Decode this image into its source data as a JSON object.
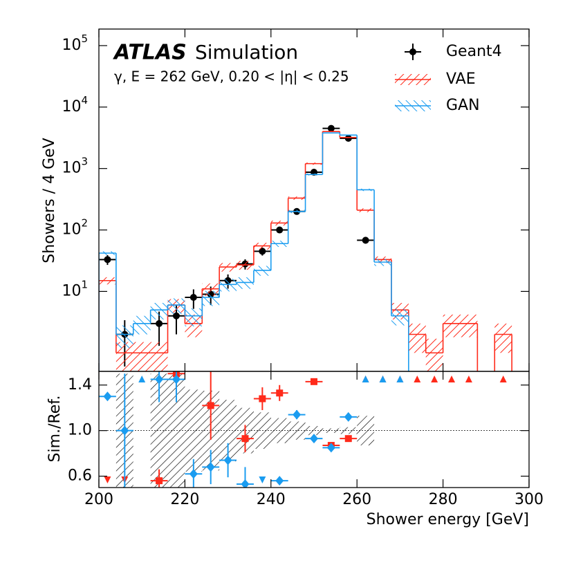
{
  "chart_data": [
    {
      "type": "histogram",
      "title": "ATLAS",
      "subtitle": "Simulation",
      "annotation": "γ, E = 262 GeV, 0.20 < |η| < 0.25",
      "ylabel": "Showers / 4 GeV",
      "log_y": true,
      "legend": "upper right",
      "xlim": [
        200,
        300
      ],
      "ylim": [
        0.5,
        186000
      ],
      "yticks": [
        {
          "value": 10,
          "label": "10",
          "power": "1"
        },
        {
          "value": 100,
          "label": "10",
          "power": "2"
        },
        {
          "value": 1000,
          "label": "10",
          "power": "3"
        },
        {
          "value": 10000,
          "label": "10",
          "power": "4"
        },
        {
          "value": 100000,
          "label": "10",
          "power": "5"
        }
      ],
      "bins": [
        200,
        204,
        208,
        212,
        216,
        220,
        224,
        228,
        232,
        236,
        240,
        244,
        248,
        252,
        256,
        260,
        264,
        268,
        272,
        276,
        280,
        284,
        288,
        292,
        296,
        300
      ],
      "series": [
        {
          "name": "Geant4",
          "style": "points",
          "color": "#000000",
          "values": [
            33,
            2,
            null,
            3,
            4,
            8,
            9,
            15,
            28,
            45,
            100,
            200,
            870,
            4500,
            3100,
            68,
            null,
            null,
            null,
            null,
            null,
            null,
            null,
            null,
            null
          ],
          "errors": [
            6,
            1.4,
            null,
            1.7,
            2,
            2.8,
            3,
            3.9,
            5.3,
            6.7,
            10,
            14,
            30,
            67,
            56,
            8.2,
            null,
            null,
            null,
            null,
            null,
            null,
            null,
            null,
            null
          ]
        },
        {
          "name": "VAE",
          "style": "step",
          "color": "#ff2a1a",
          "values": [
            15,
            1,
            1,
            1,
            6,
            3,
            11,
            25,
            27,
            55,
            130,
            330,
            1200,
            4000,
            3200,
            210,
            33,
            5,
            2,
            1,
            3,
            3,
            null,
            2,
            null
          ],
          "errors": [
            2,
            0.5,
            0.5,
            0.5,
            1.5,
            1.2,
            2.5,
            4,
            4.5,
            7,
            12,
            20,
            50,
            80,
            70,
            15,
            4,
            1.5,
            1,
            0.7,
            1.2,
            1.2,
            null,
            1,
            null
          ]
        },
        {
          "name": "GAN",
          "style": "step",
          "color": "#1a9cf0",
          "values": [
            42,
            2,
            3,
            5,
            6,
            4,
            8,
            13,
            14,
            22,
            60,
            200,
            800,
            3800,
            3500,
            450,
            30,
            4,
            null,
            null,
            null,
            null,
            null,
            null,
            null
          ],
          "errors": [
            3,
            0.8,
            1,
            1.5,
            1.7,
            1.3,
            2.2,
            3,
            3,
            4,
            7,
            12,
            30,
            60,
            60,
            20,
            4,
            1.2,
            null,
            null,
            null,
            null,
            null,
            null,
            null
          ]
        }
      ]
    },
    {
      "type": "ratio",
      "ylabel": "Sim./Ref.",
      "xlabel": "Shower energy [GeV]",
      "xlim": [
        200,
        300
      ],
      "xticks": [
        200,
        220,
        240,
        260,
        280,
        300
      ],
      "ylim": [
        0.5,
        1.52
      ],
      "yticks": [
        {
          "value": 0.6,
          "label": "0.6"
        },
        {
          "value": 1.0,
          "label": "1.0"
        },
        {
          "value": 1.4,
          "label": "1.4"
        }
      ],
      "reference_line": 1,
      "reference_errors": [
        null,
        0.5,
        null,
        0.5,
        0.5,
        0.36,
        0.35,
        0.27,
        0.2,
        0.16,
        0.11,
        0.08,
        0.04,
        0.02,
        0.03,
        0.13,
        null,
        null,
        null,
        null,
        null,
        null,
        null,
        null,
        null
      ],
      "series": [
        {
          "name": "VAE",
          "marker": "square",
          "color": "#ff2a1a",
          "x": [
            214,
            218,
            226,
            234,
            238,
            242,
            250,
            254,
            258
          ],
          "values": [
            0.56,
            1.5,
            1.22,
            0.93,
            1.28,
            1.33,
            1.43,
            0.87,
            0.93
          ],
          "errors": [
            0.1,
            0.2,
            0.3,
            0.12,
            0.1,
            0.07,
            0.02,
            0.02,
            0.02
          ],
          "arrows_up": [
            262,
            266,
            270,
            274,
            278,
            282,
            286,
            294
          ],
          "arrows_down": [
            202,
            206
          ]
        },
        {
          "name": "GAN",
          "marker": "diamond",
          "color": "#1a9cf0",
          "x": [
            202,
            206,
            214,
            218,
            222,
            226,
            230,
            234,
            242,
            246,
            250,
            254,
            258
          ],
          "values": [
            1.3,
            1.0,
            1.45,
            1.45,
            0.62,
            0.68,
            0.74,
            0.53,
            0.56,
            1.14,
            0.93,
            0.85,
            1.12
          ],
          "errors": [
            0.02,
            0.5,
            0.2,
            0.2,
            0.13,
            0.15,
            0.15,
            0.15,
            0.03,
            0.04,
            0.02,
            0.02,
            0.02
          ],
          "arrows_up": [
            210,
            262,
            266,
            270
          ],
          "arrows_down": [
            238
          ]
        }
      ]
    }
  ]
}
